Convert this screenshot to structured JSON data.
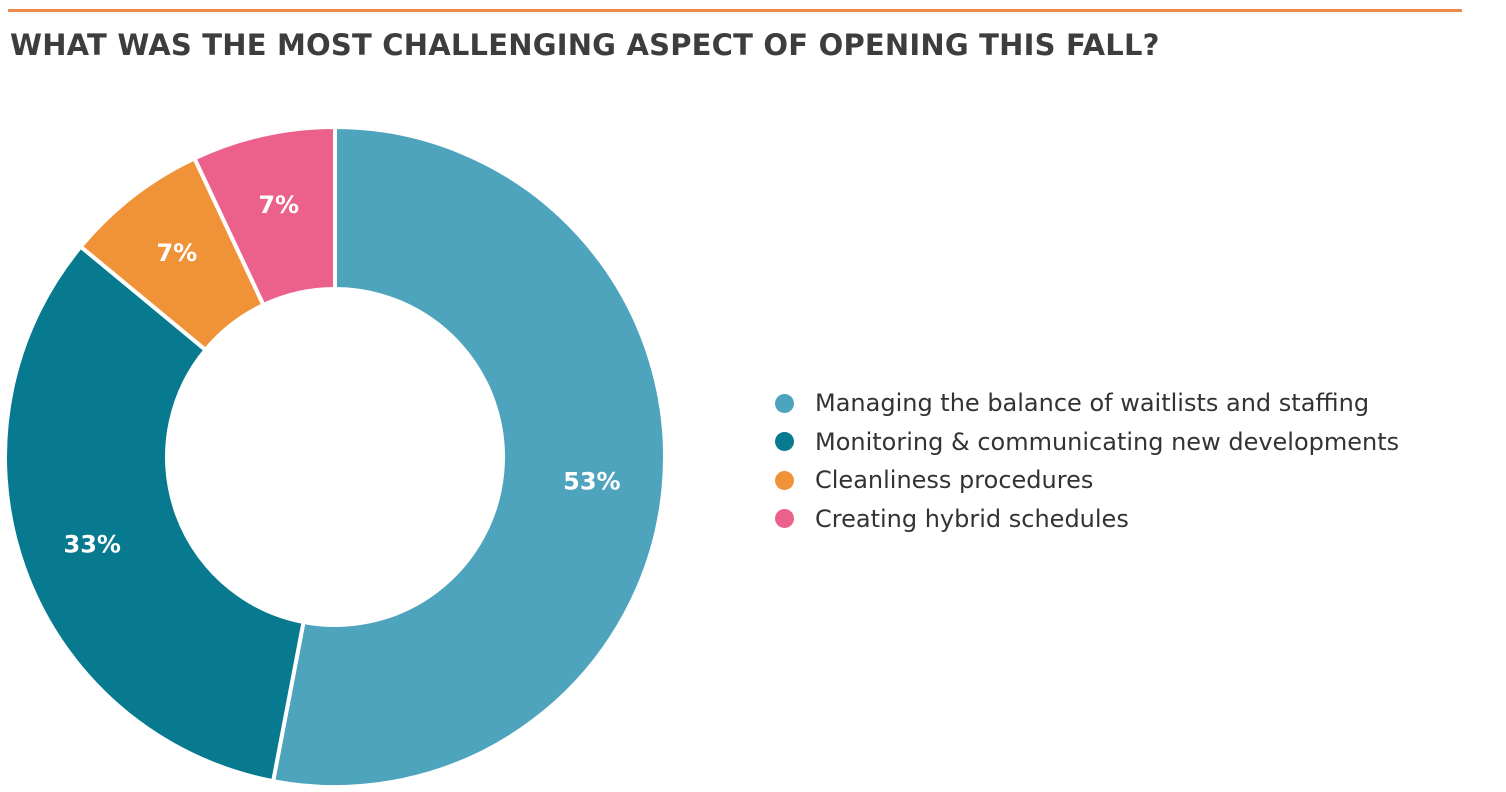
{
  "chart_data": {
    "type": "pie",
    "title": "WHAT WAS THE MOST CHALLENGING ASPECT OF OPENING THIS FALL?",
    "donut": true,
    "legend_position": "right",
    "slices": [
      {
        "label": "Managing the balance of waitlists and staffing",
        "value": 53,
        "display": "53%",
        "color": "#4ea3bd"
      },
      {
        "label": "Monitoring & communicating new developments",
        "value": 33,
        "display": "33%",
        "color": "#077a90"
      },
      {
        "label": "Cleanliness procedures",
        "value": 7,
        "display": "7%",
        "color": "#f09338"
      },
      {
        "label": "Creating hybrid schedules",
        "value": 7,
        "display": "7%",
        "color": "#ec618c"
      }
    ]
  },
  "colors": {
    "accent_rule": "#ec8a4d",
    "title_text": "#3d3d3d",
    "legend_text": "#333333",
    "slice_label_text": "#ffffff"
  }
}
